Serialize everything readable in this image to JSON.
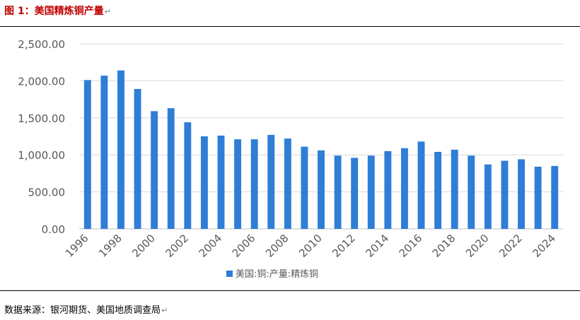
{
  "figure": {
    "title": "图 1：美国精炼铜产量",
    "mark": "↵",
    "source": "数据来源：银河期货、美国地质调查局"
  },
  "colors": {
    "bar": "#2e7ed6",
    "grid": "#d9d9d9",
    "axis_text": "#595959",
    "title": "#c00000"
  },
  "chart_data": {
    "type": "bar",
    "title": "",
    "xlabel": "",
    "ylabel": "",
    "categories": [
      "1996",
      "1997",
      "1998",
      "1999",
      "2000",
      "2001",
      "2002",
      "2003",
      "2004",
      "2005",
      "2006",
      "2007",
      "2008",
      "2009",
      "2010",
      "2011",
      "2012",
      "2013",
      "2014",
      "2015",
      "2016",
      "2017",
      "2018",
      "2019",
      "2020",
      "2021",
      "2022",
      "2023",
      "2024"
    ],
    "x_tick_labels": [
      "1996",
      "1998",
      "2000",
      "2002",
      "2004",
      "2006",
      "2008",
      "2010",
      "2012",
      "2014",
      "2016",
      "2018",
      "2020",
      "2022",
      "2024"
    ],
    "series": [
      {
        "name": "美国:铜:产量:精炼铜",
        "values": [
          2010,
          2070,
          2140,
          1890,
          1590,
          1630,
          1440,
          1250,
          1260,
          1210,
          1210,
          1270,
          1220,
          1110,
          1060,
          990,
          960,
          990,
          1050,
          1090,
          1180,
          1040,
          1070,
          990,
          870,
          920,
          940,
          840,
          850
        ]
      }
    ],
    "ylim": [
      0,
      2500
    ],
    "y_ticks": [
      "0.00",
      "500.00",
      "1,000.00",
      "1,500.00",
      "2,000.00",
      "2,500.00"
    ],
    "grid": true,
    "legend_position": "bottom"
  }
}
